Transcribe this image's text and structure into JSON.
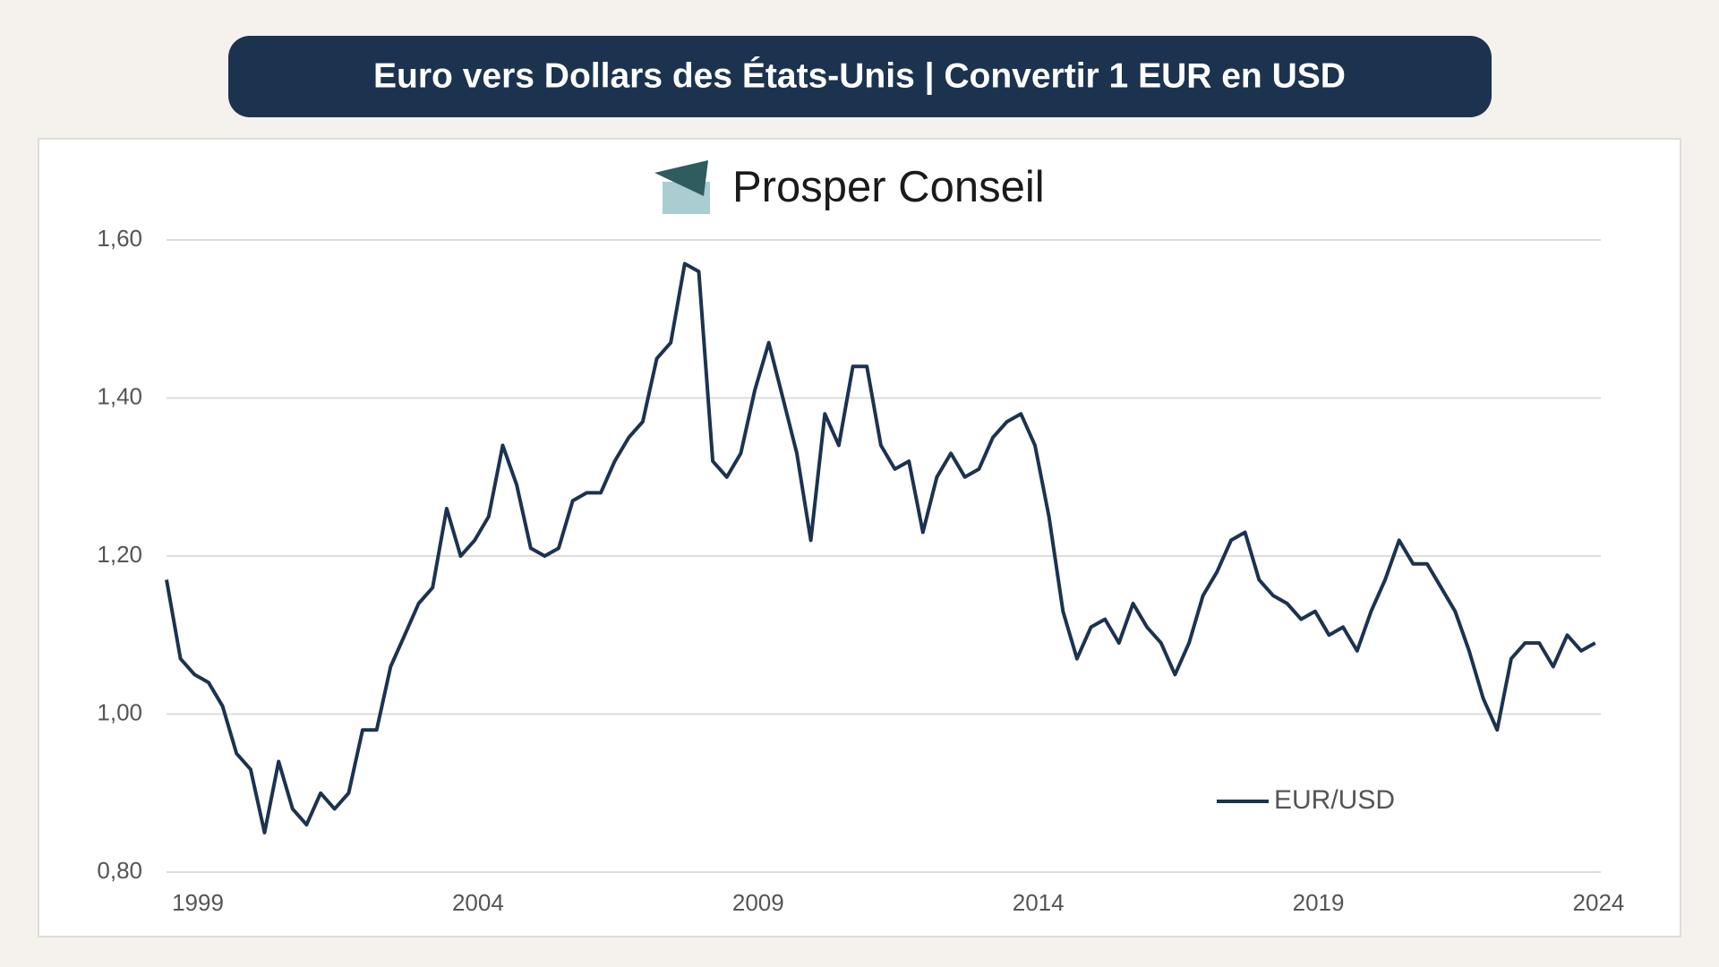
{
  "chart_data": {
    "type": "line",
    "title": "Euro vers Dollars des États-Unis | Convertir 1 EUR en USD",
    "brand": "Prosper Conseil",
    "x": [
      1999.0,
      1999.25,
      1999.5,
      1999.75,
      2000.0,
      2000.25,
      2000.5,
      2000.75,
      2001.0,
      2001.25,
      2001.5,
      2001.75,
      2002.0,
      2002.25,
      2002.5,
      2002.75,
      2003.0,
      2003.25,
      2003.5,
      2003.75,
      2004.0,
      2004.25,
      2004.5,
      2004.75,
      2005.0,
      2005.25,
      2005.5,
      2005.75,
      2006.0,
      2006.25,
      2006.5,
      2006.75,
      2007.0,
      2007.25,
      2007.5,
      2007.75,
      2008.0,
      2008.25,
      2008.5,
      2008.75,
      2009.0,
      2009.25,
      2009.5,
      2009.75,
      2010.0,
      2010.25,
      2010.5,
      2010.75,
      2011.0,
      2011.25,
      2011.5,
      2011.75,
      2012.0,
      2012.25,
      2012.5,
      2012.75,
      2013.0,
      2013.25,
      2013.5,
      2013.75,
      2014.0,
      2014.25,
      2014.5,
      2014.75,
      2015.0,
      2015.25,
      2015.5,
      2015.75,
      2016.0,
      2016.25,
      2016.5,
      2016.75,
      2017.0,
      2017.25,
      2017.5,
      2017.75,
      2018.0,
      2018.25,
      2018.5,
      2018.75,
      2019.0,
      2019.25,
      2019.5,
      2019.75,
      2020.0,
      2020.25,
      2020.5,
      2020.75,
      2021.0,
      2021.25,
      2021.5,
      2021.75,
      2022.0,
      2022.25,
      2022.5,
      2022.75,
      2023.0,
      2023.25,
      2023.5,
      2023.75,
      2024.0,
      2024.25,
      2024.5
    ],
    "series": [
      {
        "name": "EUR/USD",
        "color": "#1c3350",
        "values": [
          1.17,
          1.07,
          1.05,
          1.04,
          1.01,
          0.95,
          0.93,
          0.85,
          0.94,
          0.88,
          0.86,
          0.9,
          0.88,
          0.9,
          0.98,
          0.98,
          1.06,
          1.1,
          1.14,
          1.16,
          1.26,
          1.2,
          1.22,
          1.25,
          1.34,
          1.29,
          1.21,
          1.2,
          1.21,
          1.27,
          1.28,
          1.28,
          1.32,
          1.35,
          1.37,
          1.45,
          1.47,
          1.57,
          1.56,
          1.32,
          1.3,
          1.33,
          1.41,
          1.47,
          1.4,
          1.33,
          1.22,
          1.38,
          1.34,
          1.44,
          1.44,
          1.34,
          1.31,
          1.32,
          1.23,
          1.3,
          1.33,
          1.3,
          1.31,
          1.35,
          1.37,
          1.38,
          1.34,
          1.25,
          1.13,
          1.07,
          1.11,
          1.12,
          1.09,
          1.14,
          1.11,
          1.09,
          1.05,
          1.09,
          1.15,
          1.18,
          1.22,
          1.23,
          1.17,
          1.15,
          1.14,
          1.12,
          1.13,
          1.1,
          1.11,
          1.08,
          1.13,
          1.17,
          1.22,
          1.19,
          1.19,
          1.16,
          1.13,
          1.08,
          1.02,
          0.98,
          1.07,
          1.09,
          1.09,
          1.06,
          1.1,
          1.08,
          1.09
        ]
      }
    ],
    "xlim": [
      1999,
      2024.6
    ],
    "xticks": [
      1999,
      2004,
      2009,
      2014,
      2019,
      2024
    ],
    "ylim": [
      0.8,
      1.6
    ],
    "yticks": [
      {
        "value": 0.8,
        "label": "0,80"
      },
      {
        "value": 1.0,
        "label": "1,00"
      },
      {
        "value": 1.2,
        "label": "1,20"
      },
      {
        "value": 1.4,
        "label": "1,40"
      },
      {
        "value": 1.6,
        "label": "1,60"
      }
    ],
    "grid": true,
    "legend": "lower right"
  }
}
